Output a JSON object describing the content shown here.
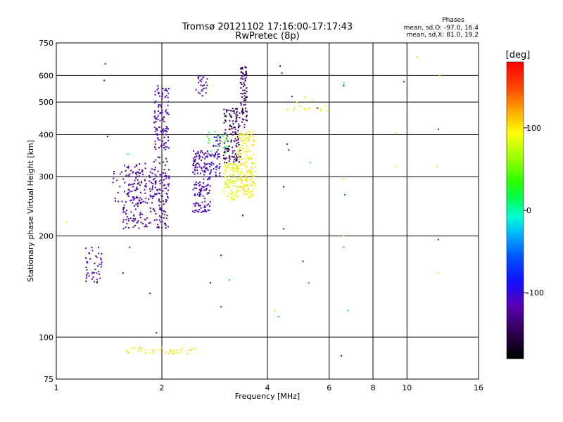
{
  "chart_data": {
    "type": "scatter",
    "title": "Tromsø 20121102 17:16:00-17:17:43",
    "subtitle": "RwPretec (8p)",
    "xlabel": "Frequency [MHz]",
    "ylabel": "Stationary phase Virtual Height [km]",
    "x_scale": "log",
    "y_scale": "log",
    "xlim": [
      1,
      16
    ],
    "ylim": [
      75,
      750
    ],
    "x_ticks": [
      1,
      2,
      4,
      6,
      8,
      10,
      16
    ],
    "y_ticks": [
      75,
      100,
      200,
      300,
      400,
      500,
      600,
      750
    ],
    "x_ticklabels": [
      "1",
      "2",
      "4",
      "6",
      "8",
      "10",
      "16"
    ],
    "y_ticklabels": [
      "75",
      "100",
      "200",
      "300",
      "400",
      "500",
      "600",
      "750"
    ],
    "grid": true,
    "stats": {
      "heading": "Phases",
      "line_o": "mean, sd,O: -97.0, 16.4",
      "line_x": "mean, sd,X: 81.0, 19.2"
    },
    "colorbar": {
      "label": "[deg]",
      "range": [
        -180,
        180
      ],
      "ticks": [
        100,
        0,
        -100
      ],
      "ticklabels": [
        "100",
        "0",
        "-100"
      ]
    },
    "clusters": [
      {
        "x": [
          1.55,
          2.1
        ],
        "y": [
          210,
          330
        ],
        "phase": -120,
        "n": 260
      },
      {
        "x": [
          1.9,
          2.1
        ],
        "y": [
          330,
          560
        ],
        "phase": -115,
        "n": 120
      },
      {
        "x": [
          1.45,
          1.75
        ],
        "y": [
          250,
          330
        ],
        "phase": -112,
        "n": 35
      },
      {
        "x": [
          2.45,
          2.75
        ],
        "y": [
          235,
          360
        ],
        "phase": -112,
        "n": 170
      },
      {
        "x": [
          2.75,
          2.95
        ],
        "y": [
          300,
          400
        ],
        "phase": -100,
        "n": 50
      },
      {
        "x": [
          3.0,
          3.35
        ],
        "y": [
          330,
          480
        ],
        "phase": -145,
        "n": 130
      },
      {
        "x": [
          3.35,
          3.5
        ],
        "y": [
          420,
          640
        ],
        "phase": -140,
        "n": 80
      },
      {
        "x": [
          3.0,
          3.3
        ],
        "y": [
          255,
          330
        ],
        "phase": 85,
        "n": 90
      },
      {
        "x": [
          3.3,
          3.7
        ],
        "y": [
          260,
          410
        ],
        "phase": 95,
        "n": 160
      },
      {
        "x": [
          2.7,
          3.1
        ],
        "y": [
          350,
          420
        ],
        "phase": 30,
        "n": 20
      },
      {
        "x": [
          1.2,
          1.35
        ],
        "y": [
          145,
          185
        ],
        "phase": -115,
        "n": 45
      },
      {
        "x": [
          1.55,
          2.5
        ],
        "y": [
          89,
          93
        ],
        "phase": 95,
        "n": 40
      },
      {
        "x": [
          2.5,
          2.7
        ],
        "y": [
          520,
          600
        ],
        "phase": -115,
        "n": 25
      },
      {
        "x": [
          4.5,
          6.0
        ],
        "y": [
          470,
          520
        ],
        "phase": 85,
        "n": 15
      }
    ],
    "sparse_points": [
      {
        "x": 1.38,
        "y": 650,
        "phase": -115
      },
      {
        "x": 1.37,
        "y": 580,
        "phase": -105
      },
      {
        "x": 1.4,
        "y": 395,
        "phase": -140
      },
      {
        "x": 1.07,
        "y": 220,
        "phase": 80
      },
      {
        "x": 1.6,
        "y": 350,
        "phase": -10
      },
      {
        "x": 1.62,
        "y": 185,
        "phase": -110
      },
      {
        "x": 1.55,
        "y": 155,
        "phase": -110
      },
      {
        "x": 1.85,
        "y": 135,
        "phase": -105
      },
      {
        "x": 1.93,
        "y": 103,
        "phase": -115
      },
      {
        "x": 2.95,
        "y": 175,
        "phase": -100
      },
      {
        "x": 3.12,
        "y": 148,
        "phase": -20
      },
      {
        "x": 3.4,
        "y": 230,
        "phase": -140
      },
      {
        "x": 2.75,
        "y": 145,
        "phase": -95
      },
      {
        "x": 2.95,
        "y": 123,
        "phase": -75
      },
      {
        "x": 4.2,
        "y": 120,
        "phase": 80
      },
      {
        "x": 4.3,
        "y": 115,
        "phase": -30
      },
      {
        "x": 4.45,
        "y": 210,
        "phase": -120
      },
      {
        "x": 4.45,
        "y": 280,
        "phase": -130
      },
      {
        "x": 4.55,
        "y": 375,
        "phase": -110
      },
      {
        "x": 4.6,
        "y": 360,
        "phase": -90
      },
      {
        "x": 4.35,
        "y": 640,
        "phase": -115
      },
      {
        "x": 4.4,
        "y": 610,
        "phase": -110
      },
      {
        "x": 4.7,
        "y": 520,
        "phase": -105
      },
      {
        "x": 5.05,
        "y": 168,
        "phase": -120
      },
      {
        "x": 5.25,
        "y": 145,
        "phase": -45
      },
      {
        "x": 5.3,
        "y": 330,
        "phase": -30
      },
      {
        "x": 5.55,
        "y": 480,
        "phase": -110
      },
      {
        "x": 6.6,
        "y": 295,
        "phase": 80
      },
      {
        "x": 6.65,
        "y": 265,
        "phase": -40
      },
      {
        "x": 6.6,
        "y": 200,
        "phase": 110
      },
      {
        "x": 6.6,
        "y": 185,
        "phase": -30
      },
      {
        "x": 6.8,
        "y": 120,
        "phase": -20
      },
      {
        "x": 6.5,
        "y": 88,
        "phase": -140
      },
      {
        "x": 6.6,
        "y": 570,
        "phase": -10
      },
      {
        "x": 6.6,
        "y": 560,
        "phase": -110
      },
      {
        "x": 9.3,
        "y": 320,
        "phase": 90
      },
      {
        "x": 9.3,
        "y": 405,
        "phase": 80
      },
      {
        "x": 9.8,
        "y": 575,
        "phase": -110
      },
      {
        "x": 10.7,
        "y": 680,
        "phase": 110
      },
      {
        "x": 12.3,
        "y": 415,
        "phase": -120
      },
      {
        "x": 12.2,
        "y": 320,
        "phase": 100
      },
      {
        "x": 12.3,
        "y": 195,
        "phase": -70
      },
      {
        "x": 12.3,
        "y": 155,
        "phase": 100
      },
      {
        "x": 12.4,
        "y": 600,
        "phase": 120
      }
    ]
  }
}
